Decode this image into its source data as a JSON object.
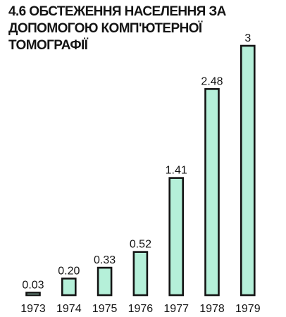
{
  "chart_data": {
    "type": "bar",
    "title": "4.6 ОБСТЕЖЕННЯ НАСЕЛЕННЯ ЗА ДОПОМОГОЮ КОМП'ЮТЕРНОЇ ТОМОГРАФІЇ",
    "categories": [
      "1973",
      "1974",
      "1975",
      "1976",
      "1977",
      "1978",
      "1979"
    ],
    "values": [
      0.03,
      0.2,
      0.33,
      0.52,
      1.41,
      2.48,
      3
    ],
    "value_labels": [
      "0.03",
      "0.20",
      "0.33",
      "0.52",
      "1.41",
      "2.48",
      "3"
    ],
    "xlabel": "",
    "ylabel": "",
    "ylim": [
      0,
      3
    ],
    "grid": false,
    "legend": "none",
    "bar_color": "#b5f0d9",
    "outline_color": "#141414"
  }
}
